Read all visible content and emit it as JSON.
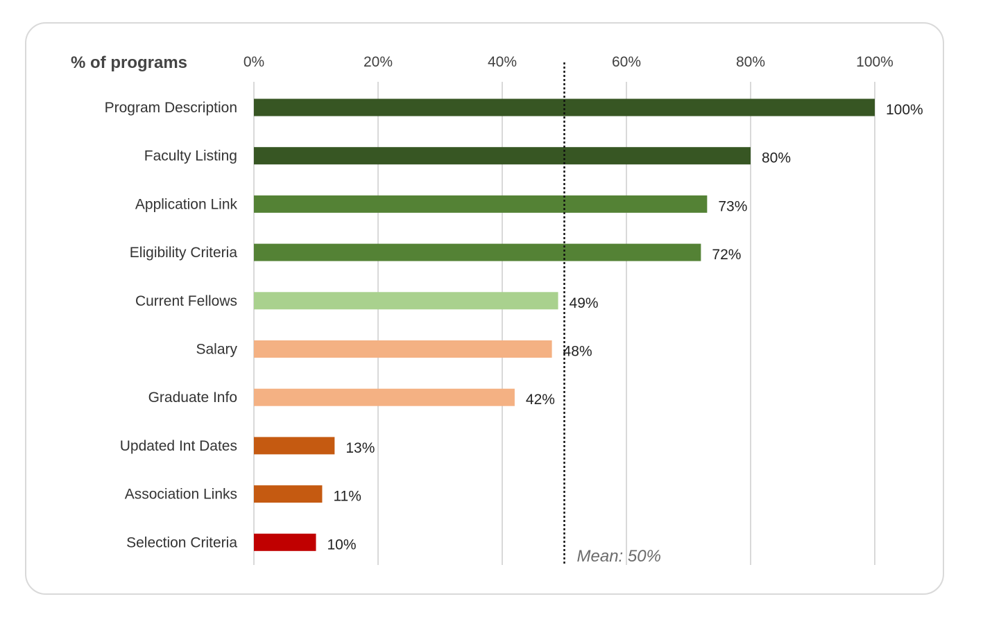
{
  "chart_data": {
    "type": "bar",
    "orientation": "horizontal",
    "title": "% of programs",
    "xlim": [
      0,
      100
    ],
    "x_ticks": [
      "0%",
      "20%",
      "40%",
      "60%",
      "80%",
      "100%"
    ],
    "x_tick_values": [
      0,
      20,
      40,
      60,
      80,
      100
    ],
    "grid": true,
    "categories": [
      "Program Description",
      "Faculty Listing",
      "Application Link",
      "Eligibility Criteria",
      "Current Fellows",
      "Salary",
      "Graduate Info",
      "Updated Int Dates",
      "Association Links",
      "Selection Criteria"
    ],
    "values": [
      100,
      80,
      73,
      72,
      49,
      48,
      42,
      13,
      11,
      10
    ],
    "value_labels": [
      "100%",
      "80%",
      "73%",
      "72%",
      "49%",
      "48%",
      "42%",
      "13%",
      "11%",
      "10%"
    ],
    "bar_colors": [
      "#375623",
      "#375623",
      "#548235",
      "#548235",
      "#a9d18e",
      "#f4b183",
      "#f4b183",
      "#c55a11",
      "#c55a11",
      "#c00000"
    ],
    "mean": {
      "value": 50,
      "label": "Mean: 50%"
    }
  }
}
